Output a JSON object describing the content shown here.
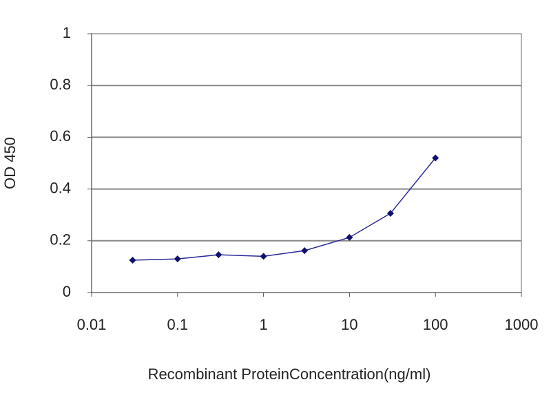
{
  "chart_data": {
    "type": "line",
    "x": [
      0.03,
      0.1,
      0.3,
      1,
      3,
      10,
      30,
      100
    ],
    "series": [
      {
        "name": "OD 450",
        "color": "#2a2a9a",
        "marker_color": "#10106e",
        "values": [
          0.125,
          0.13,
          0.146,
          0.14,
          0.162,
          0.213,
          0.306,
          0.52
        ]
      }
    ],
    "xscale": "log",
    "xlim": [
      0.01,
      1000
    ],
    "xticks": [
      0.01,
      0.1,
      1,
      10,
      100,
      1000
    ],
    "ylim": [
      0,
      1
    ],
    "yticks": [
      0,
      0.2,
      0.4,
      0.6,
      0.8,
      1
    ],
    "grid": true,
    "xlabel": "Recombinant ProteinConcentration(ng/ml)",
    "ylabel": "OD 450"
  }
}
